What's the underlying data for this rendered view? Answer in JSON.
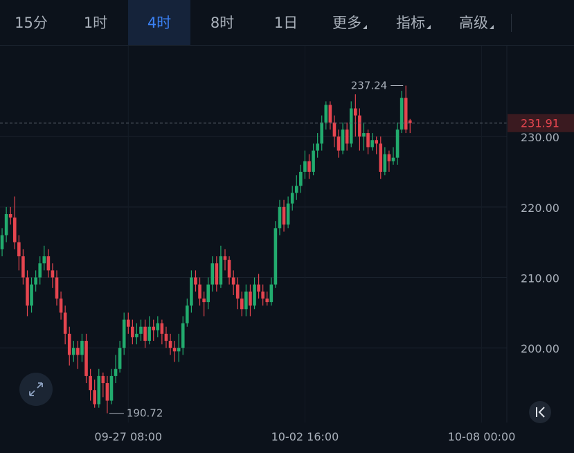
{
  "toolbar": {
    "tabs": [
      "15分",
      "1时",
      "4时",
      "8时",
      "1日",
      "更多",
      "指标",
      "高级"
    ],
    "selected": 2,
    "dropdown_tabs": [
      5,
      6,
      7
    ]
  },
  "chart_data": {
    "type": "candlestick",
    "up_color": "#22ab6e",
    "down_color": "#e5454f",
    "x": [
      0,
      1,
      2,
      3,
      4,
      5,
      6,
      7,
      8,
      9,
      10,
      11,
      12,
      13,
      14,
      15,
      16,
      17,
      18,
      19,
      20,
      21,
      22,
      23,
      24,
      25,
      26,
      27,
      28,
      29,
      30,
      31,
      32,
      33,
      34,
      35,
      36,
      37,
      38,
      39,
      40,
      41,
      42,
      43,
      44,
      45,
      46,
      47,
      48,
      49,
      50,
      51,
      52,
      53,
      54,
      55,
      56,
      57,
      58,
      59,
      60,
      61,
      62,
      63,
      64,
      65,
      66,
      67,
      68,
      69,
      70,
      71,
      72,
      73,
      74,
      75,
      76,
      77,
      78,
      79,
      80,
      81,
      82,
      83,
      84,
      85,
      86,
      87,
      88,
      89,
      90,
      91,
      92,
      93,
      94,
      95,
      96,
      97
    ],
    "open": [
      214,
      216,
      219,
      218.5,
      215,
      213,
      210,
      206,
      209,
      210,
      212,
      213,
      211,
      210,
      207,
      205,
      202,
      199,
      200,
      199,
      201,
      196,
      194,
      192,
      196,
      195,
      192.5,
      196,
      197,
      200,
      204,
      203,
      201.5,
      202,
      203,
      201,
      203,
      202.5,
      203.5,
      202,
      201,
      200,
      199.5,
      200,
      203.5,
      206,
      210,
      209,
      207,
      206.5,
      209,
      212,
      209,
      213,
      212.5,
      210,
      209,
      207,
      205.5,
      208,
      206,
      209,
      208,
      207,
      206.5,
      209,
      217,
      220,
      217.5,
      220.5,
      222,
      223,
      225,
      226.5,
      225,
      228,
      229,
      232,
      234.5,
      232,
      230,
      228,
      231,
      229,
      234,
      233,
      230,
      230.5,
      228.5,
      229.5,
      229,
      225,
      227.5,
      226.5,
      227,
      231,
      235.5,
      232.3
    ],
    "high": [
      217,
      220,
      220,
      221.5,
      216,
      214,
      211,
      210,
      211,
      213,
      214.5,
      214,
      212,
      211,
      208,
      206,
      203,
      201,
      201,
      202,
      202,
      197,
      195.5,
      197,
      196.5,
      196,
      197,
      199,
      201,
      205,
      205,
      204,
      203.5,
      204,
      204,
      204.5,
      204,
      204.5,
      204,
      203,
      202,
      201,
      202,
      204.5,
      207,
      211,
      211,
      210,
      208,
      210,
      213,
      213,
      214.5,
      214,
      213,
      211,
      210,
      208,
      209,
      209,
      210,
      210.5,
      209,
      208,
      210,
      218,
      221,
      221,
      221.5,
      223,
      224.5,
      226,
      228,
      227.5,
      229,
      230.5,
      233,
      235,
      235,
      233,
      231,
      232,
      232,
      235,
      236,
      234,
      232,
      231,
      230.5,
      230,
      230,
      228.5,
      228,
      228.5,
      232,
      236.5,
      237.24,
      232.5
    ],
    "low": [
      213,
      215,
      217.5,
      214,
      211,
      209,
      204.5,
      205,
      208,
      209,
      211,
      210,
      208.5,
      206,
      204,
      200.5,
      197.5,
      198,
      197,
      198,
      195,
      192.5,
      191.5,
      191.5,
      193,
      190.72,
      192,
      195,
      196.5,
      199,
      202,
      200.5,
      200.5,
      201,
      200,
      200.5,
      201,
      201.5,
      200.5,
      200,
      199,
      198,
      198,
      199,
      203,
      205,
      208,
      206,
      204.5,
      205.5,
      208,
      208,
      208.5,
      211,
      209,
      207.5,
      205.5,
      204.5,
      204.5,
      204.5,
      205.5,
      207,
      206,
      206,
      206,
      208.5,
      216,
      216.5,
      217,
      219.5,
      221,
      222,
      224,
      224,
      224.5,
      227,
      228,
      231,
      231,
      228.5,
      227,
      227.5,
      228,
      228.5,
      230,
      228,
      228,
      227.5,
      228,
      227.5,
      224,
      224.5,
      225,
      226,
      226,
      230.5,
      230.5,
      230.5
    ],
    "close": [
      216,
      219,
      218.5,
      215,
      213,
      210,
      206,
      209,
      210,
      212,
      213,
      211,
      210,
      207,
      205,
      202,
      199,
      200,
      199,
      201,
      196,
      194,
      192,
      196,
      195,
      192.5,
      196,
      197,
      200,
      204,
      203,
      201.5,
      202,
      203,
      201,
      203,
      202.5,
      203.5,
      202,
      201,
      200,
      199.5,
      200,
      203.5,
      206,
      210,
      209,
      207,
      206.5,
      209,
      212,
      209,
      213,
      212.5,
      210,
      209,
      207,
      205.5,
      208,
      206,
      209,
      208,
      207,
      206.5,
      209,
      217,
      220,
      217.5,
      220.5,
      222,
      223,
      225,
      226.5,
      225,
      228,
      229,
      232,
      234.5,
      232,
      230,
      228,
      231,
      229,
      234,
      233,
      230,
      230.5,
      228.5,
      229.5,
      229,
      225,
      227.5,
      226.5,
      227,
      231,
      235.5,
      231,
      231.91
    ],
    "xlim": [
      -0.5,
      120
    ],
    "xticks": [
      {
        "value": 30,
        "label": "09-27 08:00"
      },
      {
        "value": 72,
        "label": "10-02 16:00"
      },
      {
        "value": 114,
        "label": "10-08 00:00"
      }
    ],
    "ylim": [
      189.4,
      242.9
    ],
    "yticks": [
      {
        "value": 200,
        "label": "200.00"
      },
      {
        "value": 210,
        "label": "210.00"
      },
      {
        "value": 220,
        "label": "220.00"
      },
      {
        "value": 230,
        "label": "230.00"
      }
    ],
    "grid": true,
    "max_marker": 237.24,
    "min_marker": 190.72,
    "last_price": 231.91
  }
}
